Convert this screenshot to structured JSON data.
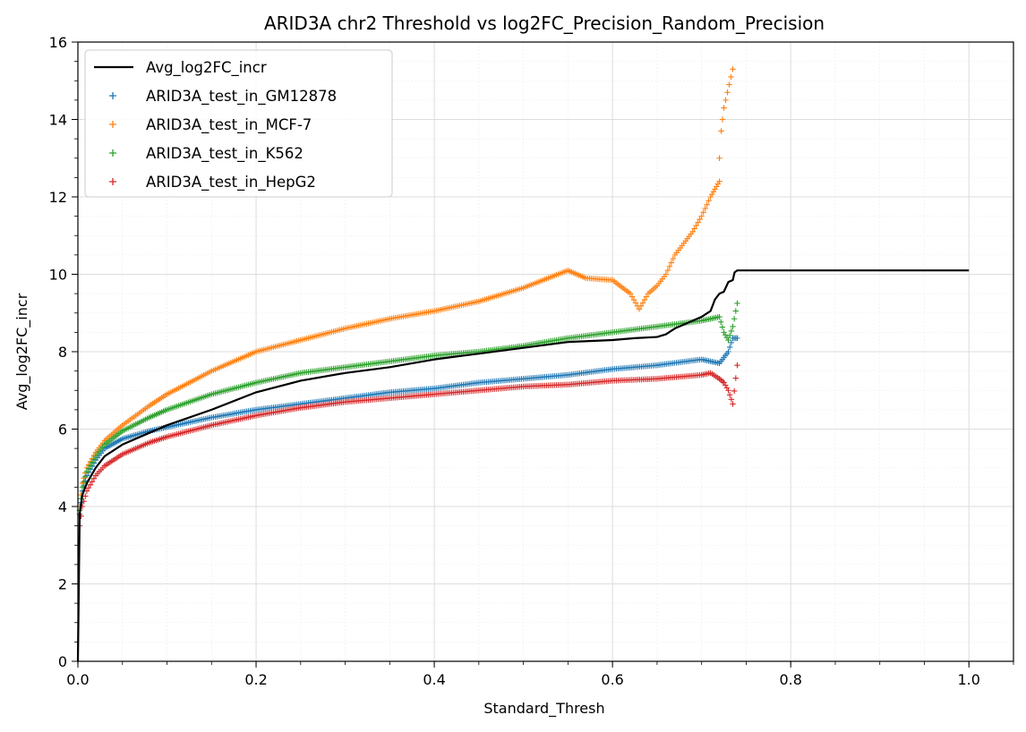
{
  "chart_data": {
    "type": "line",
    "title": "ARID3A chr2 Threshold vs log2FC_Precision_Random_Precision",
    "xlabel": "Standard_Thresh",
    "ylabel": "Avg_log2FC_incr",
    "xlim": [
      0.0,
      1.05
    ],
    "ylim": [
      0,
      16
    ],
    "x_ticks": [
      "0.0",
      "0.2",
      "0.4",
      "0.6",
      "0.8",
      "1.0"
    ],
    "y_ticks": [
      "0",
      "2",
      "4",
      "6",
      "8",
      "10",
      "12",
      "14",
      "16"
    ],
    "grid": true,
    "legend_position": "top-left",
    "series": [
      {
        "name": "Avg_log2FC_incr",
        "style": "line",
        "color": "#000000",
        "points": [
          [
            0.0,
            0.0
          ],
          [
            0.002,
            3.8
          ],
          [
            0.005,
            4.3
          ],
          [
            0.01,
            4.6
          ],
          [
            0.02,
            5.0
          ],
          [
            0.03,
            5.3
          ],
          [
            0.05,
            5.6
          ],
          [
            0.08,
            5.9
          ],
          [
            0.1,
            6.1
          ],
          [
            0.15,
            6.5
          ],
          [
            0.2,
            6.95
          ],
          [
            0.25,
            7.25
          ],
          [
            0.3,
            7.45
          ],
          [
            0.35,
            7.6
          ],
          [
            0.4,
            7.8
          ],
          [
            0.45,
            7.95
          ],
          [
            0.5,
            8.1
          ],
          [
            0.55,
            8.25
          ],
          [
            0.6,
            8.3
          ],
          [
            0.625,
            8.35
          ],
          [
            0.65,
            8.38
          ],
          [
            0.66,
            8.45
          ],
          [
            0.67,
            8.6
          ],
          [
            0.68,
            8.7
          ],
          [
            0.69,
            8.8
          ],
          [
            0.7,
            8.9
          ],
          [
            0.71,
            9.05
          ],
          [
            0.715,
            9.35
          ],
          [
            0.72,
            9.5
          ],
          [
            0.725,
            9.55
          ],
          [
            0.73,
            9.8
          ],
          [
            0.735,
            9.85
          ],
          [
            0.737,
            10.05
          ],
          [
            0.74,
            10.1
          ],
          [
            1.0,
            10.1
          ]
        ]
      },
      {
        "name": "ARID3A_test_in_GM12878",
        "style": "marker",
        "color": "#1f77b4",
        "points": [
          [
            0.0,
            0.0
          ],
          [
            0.002,
            3.8
          ],
          [
            0.005,
            4.4
          ],
          [
            0.01,
            4.8
          ],
          [
            0.02,
            5.2
          ],
          [
            0.03,
            5.5
          ],
          [
            0.05,
            5.75
          ],
          [
            0.08,
            5.95
          ],
          [
            0.1,
            6.05
          ],
          [
            0.15,
            6.3
          ],
          [
            0.2,
            6.5
          ],
          [
            0.25,
            6.65
          ],
          [
            0.3,
            6.8
          ],
          [
            0.35,
            6.95
          ],
          [
            0.4,
            7.05
          ],
          [
            0.45,
            7.2
          ],
          [
            0.5,
            7.3
          ],
          [
            0.55,
            7.4
          ],
          [
            0.6,
            7.55
          ],
          [
            0.65,
            7.65
          ],
          [
            0.7,
            7.8
          ],
          [
            0.71,
            7.75
          ],
          [
            0.72,
            7.7
          ],
          [
            0.725,
            7.85
          ],
          [
            0.73,
            8.0
          ],
          [
            0.735,
            8.35
          ],
          [
            0.74,
            8.35
          ]
        ]
      },
      {
        "name": "ARID3A_test_in_MCF-7",
        "style": "marker",
        "color": "#ff7f0e",
        "points": [
          [
            0.0,
            0.0
          ],
          [
            0.002,
            4.0
          ],
          [
            0.005,
            4.6
          ],
          [
            0.01,
            5.0
          ],
          [
            0.02,
            5.4
          ],
          [
            0.03,
            5.7
          ],
          [
            0.05,
            6.1
          ],
          [
            0.08,
            6.6
          ],
          [
            0.1,
            6.9
          ],
          [
            0.15,
            7.5
          ],
          [
            0.2,
            8.0
          ],
          [
            0.25,
            8.3
          ],
          [
            0.3,
            8.6
          ],
          [
            0.35,
            8.85
          ],
          [
            0.4,
            9.05
          ],
          [
            0.45,
            9.3
          ],
          [
            0.5,
            9.65
          ],
          [
            0.55,
            10.1
          ],
          [
            0.57,
            9.9
          ],
          [
            0.6,
            9.85
          ],
          [
            0.62,
            9.5
          ],
          [
            0.63,
            9.1
          ],
          [
            0.64,
            9.5
          ],
          [
            0.65,
            9.7
          ],
          [
            0.66,
            10.0
          ],
          [
            0.67,
            10.5
          ],
          [
            0.68,
            10.8
          ],
          [
            0.69,
            11.1
          ],
          [
            0.7,
            11.5
          ],
          [
            0.71,
            12.0
          ],
          [
            0.715,
            12.2
          ],
          [
            0.72,
            12.4
          ],
          [
            0.72,
            13.0
          ],
          [
            0.722,
            13.7
          ],
          [
            0.725,
            14.3
          ],
          [
            0.735,
            15.3
          ]
        ]
      },
      {
        "name": "ARID3A_test_in_K562",
        "style": "marker",
        "color": "#2ca02c",
        "points": [
          [
            0.0,
            0.0
          ],
          [
            0.002,
            3.9
          ],
          [
            0.005,
            4.5
          ],
          [
            0.01,
            4.9
          ],
          [
            0.02,
            5.3
          ],
          [
            0.03,
            5.6
          ],
          [
            0.05,
            5.95
          ],
          [
            0.08,
            6.3
          ],
          [
            0.1,
            6.5
          ],
          [
            0.15,
            6.9
          ],
          [
            0.2,
            7.2
          ],
          [
            0.25,
            7.45
          ],
          [
            0.3,
            7.6
          ],
          [
            0.35,
            7.75
          ],
          [
            0.4,
            7.9
          ],
          [
            0.45,
            8.0
          ],
          [
            0.5,
            8.15
          ],
          [
            0.55,
            8.35
          ],
          [
            0.6,
            8.5
          ],
          [
            0.65,
            8.65
          ],
          [
            0.7,
            8.8
          ],
          [
            0.71,
            8.85
          ],
          [
            0.72,
            8.9
          ],
          [
            0.725,
            8.5
          ],
          [
            0.73,
            8.3
          ],
          [
            0.735,
            8.65
          ],
          [
            0.74,
            9.25
          ]
        ]
      },
      {
        "name": "ARID3A_test_in_HepG2",
        "style": "marker",
        "color": "#d62728",
        "points": [
          [
            0.0,
            0.0
          ],
          [
            0.002,
            3.5
          ],
          [
            0.005,
            4.0
          ],
          [
            0.01,
            4.4
          ],
          [
            0.02,
            4.8
          ],
          [
            0.03,
            5.05
          ],
          [
            0.05,
            5.35
          ],
          [
            0.08,
            5.65
          ],
          [
            0.1,
            5.8
          ],
          [
            0.15,
            6.1
          ],
          [
            0.2,
            6.35
          ],
          [
            0.25,
            6.55
          ],
          [
            0.3,
            6.7
          ],
          [
            0.35,
            6.8
          ],
          [
            0.4,
            6.9
          ],
          [
            0.45,
            7.0
          ],
          [
            0.5,
            7.1
          ],
          [
            0.55,
            7.15
          ],
          [
            0.6,
            7.25
          ],
          [
            0.65,
            7.3
          ],
          [
            0.7,
            7.4
          ],
          [
            0.71,
            7.45
          ],
          [
            0.72,
            7.3
          ],
          [
            0.725,
            7.2
          ],
          [
            0.73,
            7.0
          ],
          [
            0.735,
            6.65
          ],
          [
            0.74,
            7.65
          ]
        ]
      }
    ]
  }
}
